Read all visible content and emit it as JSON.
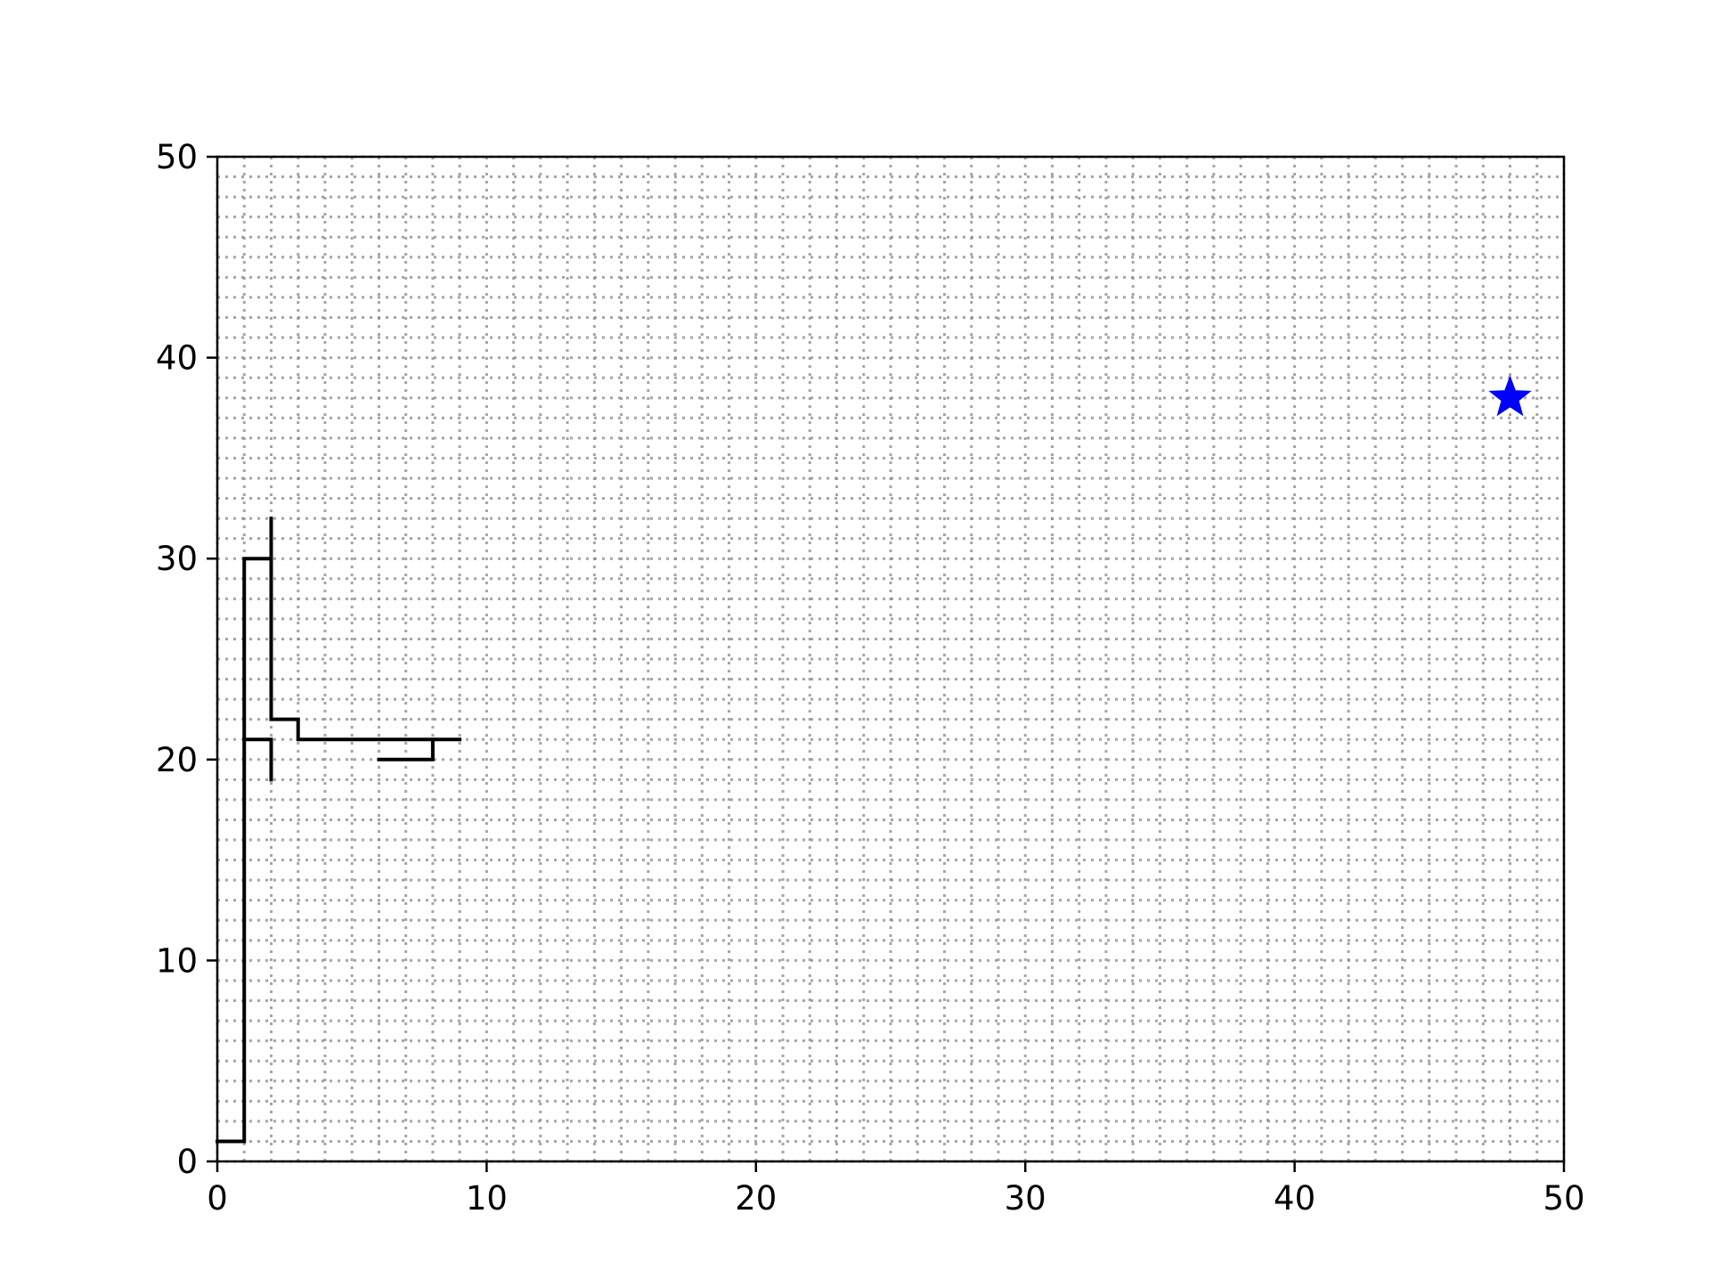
{
  "chart_data": {
    "type": "line",
    "title": "",
    "xlabel": "",
    "ylabel": "",
    "xlim": [
      0,
      50
    ],
    "ylim": [
      0,
      50
    ],
    "x_ticks": [
      0,
      10,
      20,
      30,
      40,
      50
    ],
    "y_ticks": [
      0,
      10,
      20,
      30,
      40,
      50
    ],
    "x_tick_labels": [
      "0",
      "10",
      "20",
      "30",
      "40",
      "50"
    ],
    "y_tick_labels": [
      "0",
      "10",
      "20",
      "30",
      "40",
      "50"
    ],
    "grid": true,
    "grid_step": 1,
    "grid_style": "dotted",
    "legend": "none",
    "colors": {
      "path": "#000000",
      "marker": "#0000ff",
      "grid": "#888888"
    },
    "segments": [
      {
        "x": [
          0,
          1,
          1,
          2,
          2,
          3,
          3,
          9
        ],
        "y": [
          1,
          1,
          30,
          30,
          22,
          22,
          21,
          21
        ]
      },
      {
        "x": [
          2,
          2
        ],
        "y": [
          30,
          32
        ]
      },
      {
        "x": [
          1,
          2,
          2
        ],
        "y": [
          21,
          21,
          19
        ]
      },
      {
        "x": [
          6,
          8,
          8
        ],
        "y": [
          20,
          20,
          21
        ]
      }
    ],
    "markers": [
      {
        "x": 48,
        "y": 38,
        "shape": "star"
      }
    ]
  }
}
